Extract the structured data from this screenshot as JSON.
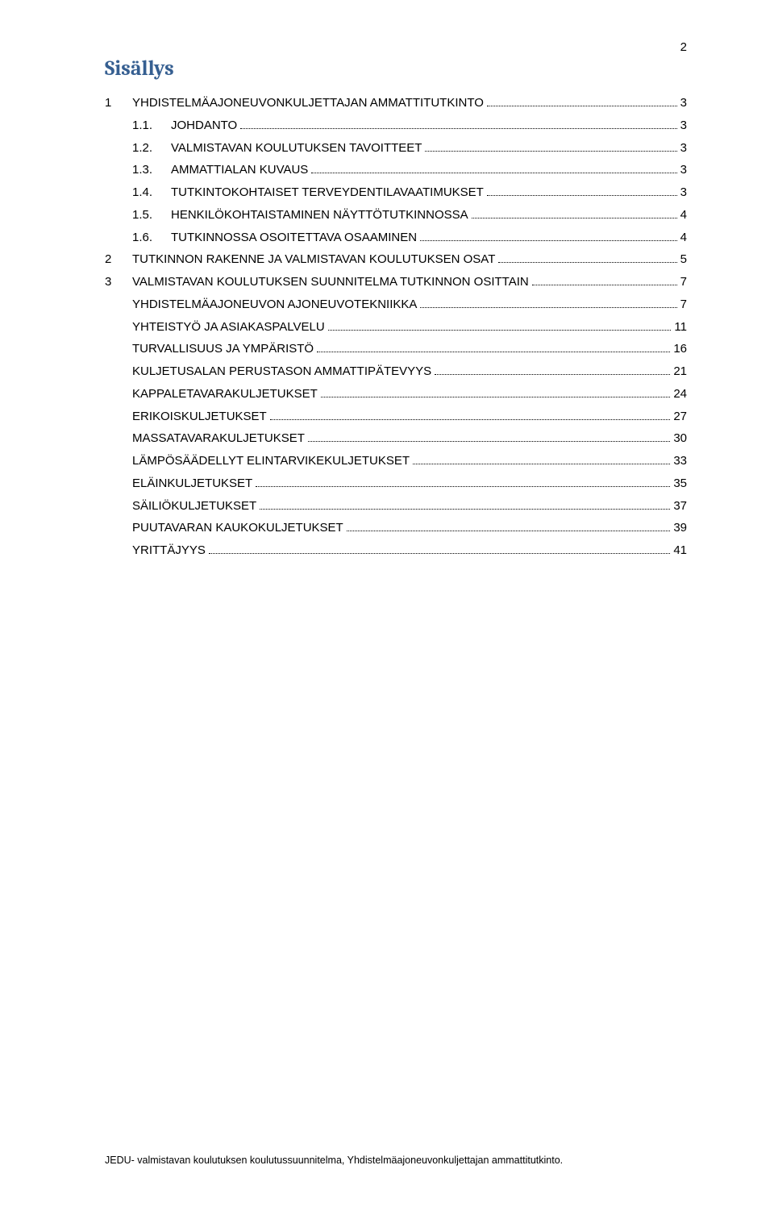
{
  "page_number_top": "2",
  "title": "Sisällys",
  "colors": {
    "title_color": "#365f91",
    "text_color": "#000000",
    "background": "#ffffff"
  },
  "typography": {
    "title_font": "Cambria",
    "title_size_pt": 20,
    "body_font": "Arial",
    "body_size_pt": 11,
    "footer_size_pt": 9
  },
  "toc": [
    {
      "level": 0,
      "num": "1",
      "label": "YHDISTELMÄAJONEUVONKULJETTAJAN AMMATTITUTKINTO",
      "page": "3"
    },
    {
      "level": 1,
      "num": "1.1.",
      "label": "JOHDANTO",
      "page": "3"
    },
    {
      "level": 1,
      "num": "1.2.",
      "label": "VALMISTAVAN KOULUTUKSEN TAVOITTEET",
      "page": "3"
    },
    {
      "level": 1,
      "num": "1.3.",
      "label": "AMMATTIALAN KUVAUS",
      "page": "3"
    },
    {
      "level": 1,
      "num": "1.4.",
      "label": "TUTKINTOKOHTAISET TERVEYDENTILAVAATIMUKSET",
      "page": "3"
    },
    {
      "level": 1,
      "num": "1.5.",
      "label": "HENKILÖKOHTAISTAMINEN NÄYTTÖTUTKINNOSSA",
      "page": "4"
    },
    {
      "level": 1,
      "num": "1.6.",
      "label": "TUTKINNOSSA OSOITETTAVA OSAAMINEN",
      "page": "4"
    },
    {
      "level": 0,
      "num": "2",
      "label": "TUTKINNON RAKENNE JA VALMISTAVAN KOULUTUKSEN OSAT",
      "page": "5"
    },
    {
      "level": 0,
      "num": "3",
      "label": "VALMISTAVAN KOULUTUKSEN SUUNNITELMA TUTKINNON OSITTAIN",
      "page": "7"
    },
    {
      "level": 2,
      "num": "",
      "label": "YHDISTELMÄAJONEUVON AJONEUVOTEKNIIKKA",
      "page": "7"
    },
    {
      "level": 2,
      "num": "",
      "label": "YHTEISTYÖ JA ASIAKASPALVELU",
      "page": "11"
    },
    {
      "level": 2,
      "num": "",
      "label": "TURVALLISUUS JA YMPÄRISTÖ",
      "page": "16"
    },
    {
      "level": 2,
      "num": "",
      "label": "KULJETUSALAN PERUSTASON AMMATTIPÄTEVYYS",
      "page": "21"
    },
    {
      "level": 2,
      "num": "",
      "label": "KAPPALETAVARAKULJETUKSET",
      "page": "24"
    },
    {
      "level": 2,
      "num": "",
      "label": "ERIKOISKULJETUKSET",
      "page": "27"
    },
    {
      "level": 2,
      "num": "",
      "label": "MASSATAVARAKULJETUKSET",
      "page": "30"
    },
    {
      "level": 2,
      "num": "",
      "label": "LÄMPÖSÄÄDELLYT ELINTARVIKEKULJETUKSET",
      "page": "33"
    },
    {
      "level": 2,
      "num": "",
      "label": "ELÄINKULJETUKSET",
      "page": "35"
    },
    {
      "level": 2,
      "num": "",
      "label": "SÄILIÖKULJETUKSET",
      "page": "37"
    },
    {
      "level": 2,
      "num": "",
      "label": "PUUTAVARAN KAUKOKULJETUKSET",
      "page": "39"
    },
    {
      "level": 2,
      "num": "",
      "label": "YRITTÄJYYS",
      "page": "41"
    }
  ],
  "footer": "JEDU- valmistavan koulutuksen koulutussuunnitelma, Yhdistelmäajoneuvonkuljettajan ammattitutkinto."
}
